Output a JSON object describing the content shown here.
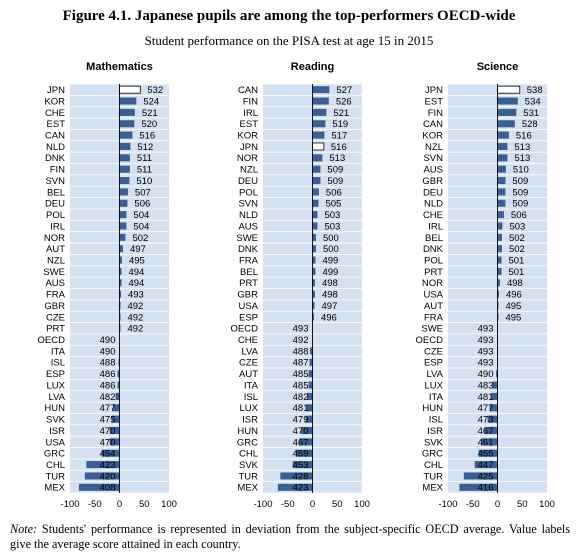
{
  "title": "Figure 4.1. Japanese pupils are among the top-performers OECD-wide",
  "subtitle": "Student performance on the PISA test at age 15 in 2015",
  "note_label": "Note:",
  "note_text": "Students' performance is represented in deviation from the subject-specific OECD average. Value labels give the average score attained in each country.",
  "chart_data": [
    {
      "type": "bar",
      "orientation": "horizontal",
      "title": "Mathematics",
      "xlim": [
        -100,
        100
      ],
      "xticks": [
        -100,
        -50,
        0,
        50,
        100
      ],
      "oecd_average": 490,
      "categories": [
        "JPN",
        "KOR",
        "CHE",
        "EST",
        "CAN",
        "NLD",
        "DNK",
        "FIN",
        "SVN",
        "BEL",
        "DEU",
        "POL",
        "IRL",
        "NOR",
        "AUT",
        "NZL",
        "SWE",
        "AUS",
        "FRA",
        "GBR",
        "CZE",
        "PRT",
        "OECD",
        "ITA",
        "ISL",
        "ESP",
        "LUX",
        "LVA",
        "HUN",
        "SVK",
        "ISR",
        "USA",
        "GRC",
        "CHL",
        "TUR",
        "MEX"
      ],
      "values": [
        532,
        524,
        521,
        520,
        516,
        512,
        511,
        511,
        510,
        507,
        506,
        504,
        504,
        502,
        497,
        495,
        494,
        494,
        493,
        492,
        492,
        492,
        490,
        490,
        488,
        486,
        486,
        482,
        477,
        475,
        470,
        470,
        454,
        423,
        420,
        408
      ],
      "highlight": "JPN",
      "colors": {
        "bar": "#3b5f93",
        "highlight": "#ffffff",
        "background": "#d5e1f0"
      }
    },
    {
      "type": "bar",
      "orientation": "horizontal",
      "title": "Reading",
      "xlim": [
        -100,
        100
      ],
      "xticks": [
        -100,
        -50,
        0,
        50,
        100
      ],
      "oecd_average": 493,
      "categories": [
        "CAN",
        "FIN",
        "IRL",
        "EST",
        "KOR",
        "JPN",
        "NOR",
        "NZL",
        "DEU",
        "POL",
        "SVN",
        "NLD",
        "AUS",
        "SWE",
        "DNK",
        "FRA",
        "BEL",
        "PRT",
        "GBR",
        "USA",
        "ESP",
        "OECD",
        "CHE",
        "LVA",
        "CZE",
        "AUT",
        "ITA",
        "ISL",
        "LUX",
        "ISR",
        "HUN",
        "GRC",
        "CHL",
        "SVK",
        "TUR",
        "MEX"
      ],
      "values": [
        527,
        526,
        521,
        519,
        517,
        516,
        513,
        509,
        509,
        506,
        505,
        503,
        503,
        500,
        500,
        499,
        499,
        498,
        498,
        497,
        496,
        493,
        492,
        488,
        487,
        485,
        485,
        482,
        481,
        479,
        470,
        467,
        459,
        453,
        428,
        423
      ],
      "highlight": "JPN",
      "colors": {
        "bar": "#3b5f93",
        "highlight": "#ffffff",
        "background": "#d5e1f0"
      }
    },
    {
      "type": "bar",
      "orientation": "horizontal",
      "title": "Science",
      "xlim": [
        -100,
        100
      ],
      "xticks": [
        -100,
        -50,
        0,
        50,
        100
      ],
      "oecd_average": 493,
      "categories": [
        "JPN",
        "EST",
        "FIN",
        "CAN",
        "KOR",
        "NZL",
        "SVN",
        "AUS",
        "GBR",
        "DEU",
        "NLD",
        "CHE",
        "IRL",
        "BEL",
        "DNK",
        "POL",
        "PRT",
        "NOR",
        "USA",
        "AUT",
        "FRA",
        "SWE",
        "OECD",
        "CZE",
        "ESP",
        "LVA",
        "LUX",
        "ITA",
        "HUN",
        "ISL",
        "ISR",
        "SVK",
        "GRC",
        "CHL",
        "TUR",
        "MEX"
      ],
      "values": [
        538,
        534,
        531,
        528,
        516,
        513,
        513,
        510,
        509,
        509,
        509,
        506,
        503,
        502,
        502,
        501,
        501,
        498,
        496,
        495,
        495,
        493,
        493,
        493,
        493,
        490,
        483,
        481,
        477,
        473,
        467,
        461,
        455,
        447,
        425,
        416
      ],
      "highlight": "JPN",
      "colors": {
        "bar": "#3b5f93",
        "highlight": "#ffffff",
        "background": "#d5e1f0"
      }
    }
  ]
}
